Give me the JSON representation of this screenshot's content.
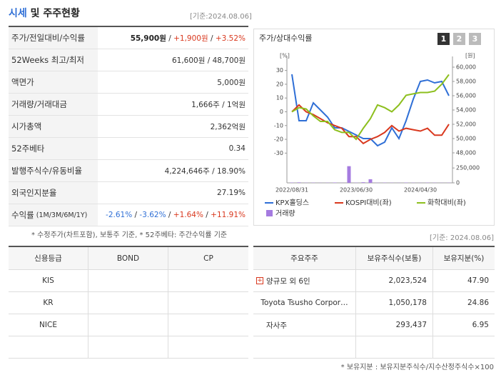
{
  "header": {
    "title_highlight": "시세",
    "title_rest": "및 주주현황",
    "date": "[기준:2024.08.06]"
  },
  "quote_table": {
    "rows": [
      {
        "label": "주가/전일대비/수익률",
        "parts": [
          "55,900원",
          " / ",
          "+1,900원",
          " / ",
          "+3.52%"
        ]
      },
      {
        "label": "52Weeks 최고/최저",
        "parts": [
          "61,600원 / 48,700원"
        ]
      },
      {
        "label": "액면가",
        "parts": [
          "5,000원"
        ]
      },
      {
        "label": "거래량/거래대금",
        "parts": [
          "1,666주 / 1억원"
        ]
      },
      {
        "label": "시가총액",
        "parts": [
          "2,362억원"
        ]
      },
      {
        "label": "52주베타",
        "parts": [
          "0.34"
        ]
      },
      {
        "label": "발행주식수/유동비율",
        "parts": [
          "4,224,646주 / 18.90%"
        ]
      },
      {
        "label": "외국인지분율",
        "parts": [
          "27.19%"
        ]
      },
      {
        "label": "수익률",
        "sublabel": "(1M/3M/6M/1Y)",
        "parts": [
          "-2.61%",
          " / ",
          "-3.62%",
          " / ",
          "+1.64%",
          " / ",
          "+11.91%"
        ]
      }
    ],
    "note": "* 수정주가(차트포함), 보통주 기준, * 52주베타: 주간수익률 기준"
  },
  "chart_data": {
    "type": "line",
    "title": "주가/상대수익률",
    "buttons": [
      "1",
      "2",
      "3"
    ],
    "y_unit": "[%]",
    "y2_unit": "[원]",
    "categories": [
      "2022/08/31",
      null,
      null,
      null,
      null,
      null,
      null,
      null,
      null,
      "2023/06/30",
      null,
      null,
      null,
      null,
      null,
      null,
      null,
      null,
      "2024/04/30",
      null,
      null,
      null,
      null
    ],
    "ylim": [
      -35,
      35
    ],
    "yticks": [
      30,
      20,
      10,
      0,
      -10,
      -20,
      -30
    ],
    "y2lim": [
      47000,
      60500
    ],
    "y2ticks": [
      {
        "value": 60000,
        "label": "60,000"
      },
      {
        "value": 58000,
        "label": "58,000"
      },
      {
        "value": 56000,
        "label": "56,000"
      },
      {
        "value": 54000,
        "label": "54,000"
      },
      {
        "value": 52000,
        "label": "52,000"
      },
      {
        "value": 50000,
        "label": "50,000"
      },
      {
        "value": 48000,
        "label": "48,000"
      }
    ],
    "series": [
      {
        "name": "KPX홀딩스",
        "color": "#2f6fd6",
        "axis": "y2",
        "values": [
          59000,
          52500,
          52500,
          55000,
          54000,
          53000,
          51500,
          51500,
          51000,
          50500,
          50000,
          50000,
          49000,
          49500,
          51500,
          50000,
          52500,
          55500,
          58000,
          58200,
          57800,
          58000,
          56000
        ]
      },
      {
        "name": "KOSPI대비(좌)",
        "color": "#d9381e",
        "values": [
          0,
          5,
          0,
          -2,
          -5,
          -8,
          -10,
          -12,
          -18,
          -18,
          -23,
          -20,
          -18,
          -15,
          -10,
          -14,
          -12,
          -13,
          -14,
          -12,
          -17,
          -17,
          -9
        ]
      },
      {
        "name": "화학대비(좌)",
        "color": "#8dbf1e",
        "values": [
          0,
          3,
          2,
          -3,
          -7,
          -7,
          -13,
          -15,
          -15,
          -20,
          -12,
          -5,
          5,
          3,
          0,
          5,
          12,
          13,
          14,
          14,
          15,
          20,
          27
        ]
      }
    ],
    "volume": {
      "name": "거래량",
      "color": "#a57be0",
      "ylim": [
        0,
        300000
      ],
      "yticks": [
        {
          "value": 250000,
          "label": "250,000"
        },
        0
      ],
      "values": [
        5000,
        8000,
        3000,
        4000,
        2000,
        3000,
        6000,
        2000,
        280000,
        4000,
        10000,
        60000,
        3000,
        4000,
        3000,
        2000,
        5000,
        3000,
        2000,
        4000,
        3000,
        2000,
        3000
      ]
    }
  },
  "date2": "[기준: 2024.08.06]",
  "credit_table": {
    "headers": [
      "신용등급",
      "BOND",
      "CP"
    ],
    "rows": [
      "KIS",
      "KR",
      "NICE"
    ]
  },
  "shareholder_table": {
    "headers": [
      "주요주주",
      "보유주식수(보통)",
      "보유지분(%)"
    ],
    "rows": [
      [
        "양규모 외 6인",
        "2,023,524",
        "47.90"
      ],
      [
        "Toyota Tsusho Corpor…",
        "1,050,178",
        "24.86"
      ],
      [
        "자사주",
        "293,437",
        "6.95"
      ]
    ],
    "note": "* 보유지분 : 보유지분주식수/지수산정주식수×100"
  }
}
